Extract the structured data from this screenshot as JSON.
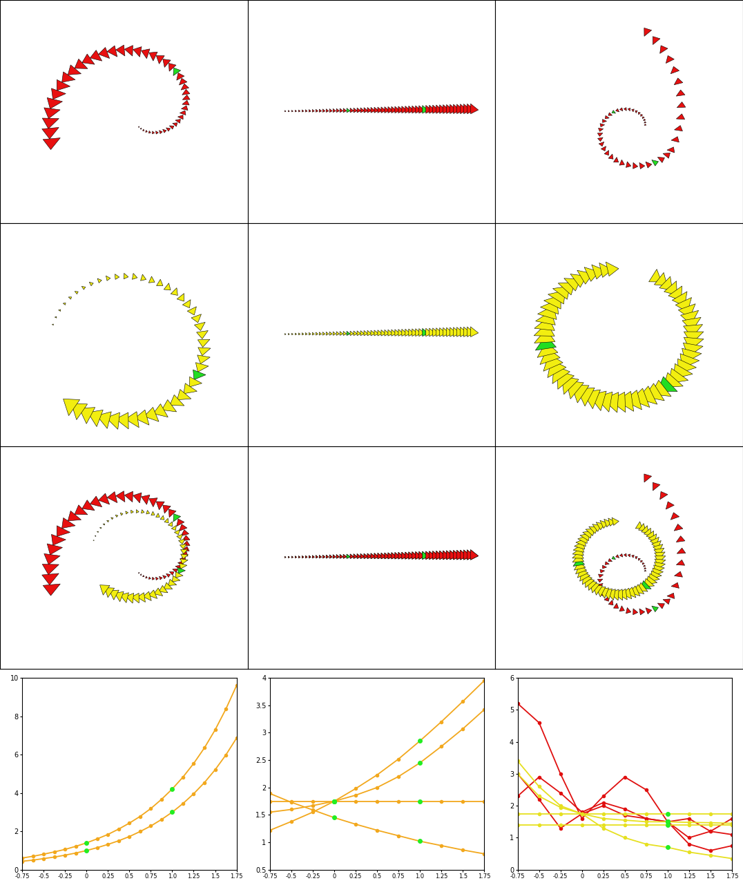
{
  "chart_data": [
    {
      "type": "line",
      "x": [
        -0.75,
        -0.625,
        -0.5,
        -0.375,
        -0.25,
        -0.125,
        0,
        0.125,
        0.25,
        0.375,
        0.5,
        0.625,
        0.75,
        0.875,
        1,
        1.125,
        1.25,
        1.375,
        1.5,
        1.625,
        1.75
      ],
      "series": [
        {
          "color": "#f2a81d",
          "marker": "o",
          "values": [
            0.61,
            0.7,
            0.81,
            0.93,
            1.06,
            1.22,
            1.4,
            1.61,
            1.84,
            2.12,
            2.43,
            2.78,
            3.19,
            3.67,
            4.21,
            4.83,
            5.54,
            6.35,
            7.29,
            8.37,
            9.6
          ]
        },
        {
          "color": "#f2a81d",
          "marker": "o",
          "values": [
            0.44,
            0.5,
            0.58,
            0.66,
            0.76,
            0.87,
            1.0,
            1.15,
            1.32,
            1.51,
            1.73,
            1.99,
            2.28,
            2.62,
            3.0,
            3.45,
            3.96,
            4.54,
            5.21,
            5.98,
            6.86
          ]
        }
      ],
      "highlight": {
        "x": [
          0,
          1
        ],
        "color": "#22ee22"
      },
      "xlim": [
        -0.75,
        1.75
      ],
      "xticks": [
        -0.75,
        -0.5,
        -0.25,
        0,
        0.25,
        0.5,
        0.75,
        {
          "value": 1,
          "label": "1.0"
        },
        1.25,
        1.5,
        1.75
      ],
      "ylim": [
        0,
        10
      ],
      "yticks": [
        0,
        2,
        4,
        6,
        8,
        10
      ],
      "grid": false
    },
    {
      "type": "line",
      "x": [
        -0.75,
        -0.5,
        -0.25,
        0,
        0.25,
        0.5,
        0.75,
        1,
        1.25,
        1.5,
        1.75
      ],
      "series": [
        {
          "color": "#f2a81d",
          "marker": "o",
          "values": [
            1.22,
            1.38,
            1.55,
            1.75,
            1.98,
            2.23,
            2.52,
            2.85,
            3.2,
            3.57,
            3.95
          ]
        },
        {
          "color": "#f2a81d",
          "marker": "o",
          "values": [
            1.55,
            1.6,
            1.67,
            1.75,
            1.86,
            2.0,
            2.2,
            2.45,
            2.75,
            3.07,
            3.42
          ]
        },
        {
          "color": "#f2a81d",
          "marker": "o",
          "values": [
            1.75,
            1.75,
            1.75,
            1.75,
            1.75,
            1.75,
            1.75,
            1.75,
            1.75,
            1.75,
            1.75
          ]
        },
        {
          "color": "#f2a81d",
          "marker": "o",
          "values": [
            1.89,
            1.73,
            1.59,
            1.45,
            1.33,
            1.22,
            1.12,
            1.02,
            0.94,
            0.86,
            0.79
          ]
        }
      ],
      "highlight": {
        "x": [
          0,
          1
        ],
        "color": "#22ee22"
      },
      "xlim": [
        -0.75,
        1.75
      ],
      "xticks": [
        -0.75,
        -0.5,
        -0.25,
        0,
        0.25,
        0.5,
        0.75,
        {
          "value": 1,
          "label": "1.0"
        },
        1.25,
        1.5,
        1.75
      ],
      "ylim": [
        0.5,
        4
      ],
      "yticks": [
        0.5,
        1,
        1.5,
        2,
        2.5,
        3,
        3.5,
        4
      ],
      "grid": false
    },
    {
      "type": "line",
      "x": [
        -0.75,
        -0.5,
        -0.25,
        0,
        0.25,
        0.5,
        0.75,
        1,
        1.25,
        1.5,
        1.75
      ],
      "series": [
        {
          "color": "#e01010",
          "marker": "o",
          "values": [
            5.2,
            4.6,
            3.0,
            1.6,
            2.3,
            2.9,
            2.5,
            1.5,
            0.8,
            0.6,
            0.75
          ]
        },
        {
          "color": "#e01010",
          "marker": "o",
          "values": [
            2.3,
            2.9,
            2.4,
            1.8,
            2.1,
            1.9,
            1.6,
            1.5,
            1.6,
            1.2,
            1.1
          ]
        },
        {
          "color": "#e01010",
          "marker": "o",
          "values": [
            3.0,
            2.2,
            1.3,
            1.75,
            2.0,
            1.7,
            1.6,
            1.5,
            1.0,
            1.2,
            1.6
          ]
        },
        {
          "color": "#e6e020",
          "marker": "o",
          "values": [
            3.4,
            2.6,
            2.0,
            1.75,
            1.3,
            1.0,
            0.8,
            0.7,
            0.55,
            0.45,
            0.35
          ]
        },
        {
          "color": "#e6e020",
          "marker": "o",
          "values": [
            3.0,
            2.3,
            1.95,
            1.75,
            1.6,
            1.55,
            1.5,
            1.5,
            1.48,
            1.47,
            1.45
          ]
        },
        {
          "color": "#e6e020",
          "marker": "o",
          "values": [
            1.75,
            1.75,
            1.75,
            1.75,
            1.75,
            1.75,
            1.75,
            1.75,
            1.75,
            1.75,
            1.75
          ]
        },
        {
          "color": "#e6e020",
          "marker": "o",
          "values": [
            1.4,
            1.4,
            1.4,
            1.4,
            1.4,
            1.4,
            1.4,
            1.4,
            1.4,
            1.4,
            1.4
          ]
        }
      ],
      "highlight": {
        "x": [
          1
        ],
        "color": "#22ee22"
      },
      "xlim": [
        -0.75,
        1.75
      ],
      "xticks": [
        -0.75,
        -0.5,
        -0.25,
        0,
        0.25,
        0.5,
        0.75,
        {
          "value": 1,
          "label": "1.0"
        },
        1.25,
        1.5,
        1.75
      ],
      "ylim": [
        0,
        6
      ],
      "yticks": [
        0,
        1,
        2,
        3,
        4,
        5,
        6
      ],
      "grid": false
    }
  ]
}
